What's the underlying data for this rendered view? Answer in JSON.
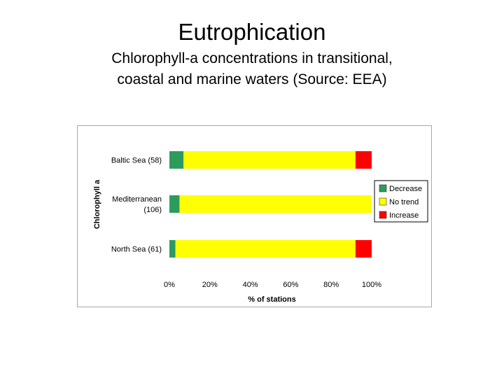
{
  "slide": {
    "title": "Eutrophication",
    "subtitle_lines": [
      "Chlorophyll-a concentrations in transitional,",
      "coastal and marine waters (Source: EEA)"
    ]
  },
  "chart_data": {
    "type": "bar",
    "orientation": "horizontal",
    "stacked": true,
    "normalized": true,
    "categories": [
      {
        "lines": [
          "Baltic Sea (58)"
        ]
      },
      {
        "lines": [
          "Mediterranean",
          "(106)"
        ]
      },
      {
        "lines": [
          "North Sea (61)"
        ]
      }
    ],
    "series": [
      {
        "name": "Decrease",
        "color": "#2e9b5e",
        "values": [
          7,
          5,
          3
        ]
      },
      {
        "name": "No trend",
        "color": "#ffff00",
        "values": [
          85,
          95,
          89
        ]
      },
      {
        "name": "Increase",
        "color": "#ff0000",
        "values": [
          8,
          0,
          8
        ]
      }
    ],
    "xlabel": "% of stations",
    "ylabel": "Chlorophyll a",
    "xlim": [
      0,
      100
    ],
    "xticks": [
      "0%",
      "20%",
      "40%",
      "60%",
      "80%",
      "100%"
    ],
    "grid": false,
    "legend_position": "right"
  }
}
